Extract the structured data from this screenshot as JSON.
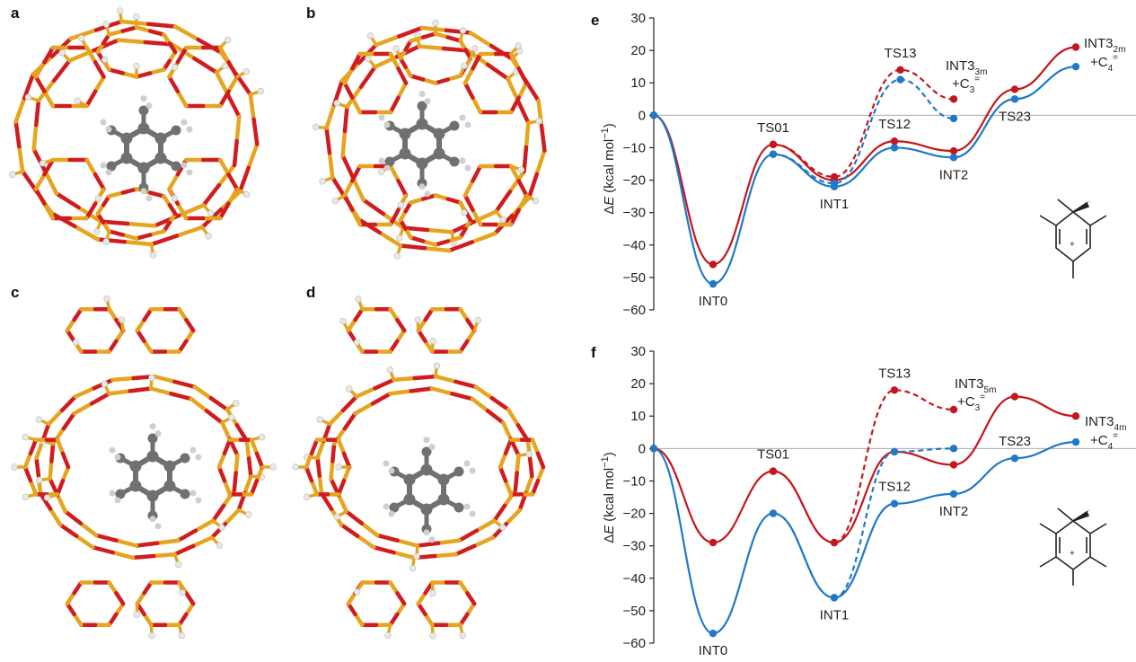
{
  "panels": {
    "a": {
      "letter": "a"
    },
    "b": {
      "letter": "b"
    },
    "c": {
      "letter": "c"
    },
    "d": {
      "letter": "d"
    }
  },
  "colors": {
    "red": "#c4161c",
    "blue": "#1f78c8",
    "gold": "#e5a521",
    "oxygen": "#d01c1f",
    "carbon": "#6e6e6e",
    "hydrogen": "#d9d9d9"
  },
  "chart_data": [
    {
      "panel": "e",
      "type": "line",
      "ylabel_delta": "Δ",
      "ylabel_E": "E",
      "ylabel_unit": "(kcal mol",
      "ylabel_sup": "−1",
      "ylabel_close": ")",
      "ylim": [
        -60,
        30
      ],
      "yticks": [
        30,
        20,
        10,
        0,
        -10,
        -20,
        -30,
        -40,
        -50,
        -60
      ],
      "x_positions": [
        0,
        1,
        2,
        3,
        4,
        5,
        6
      ],
      "series": [
        {
          "name": "red-solid",
          "color": "#c4161c",
          "dash": false,
          "points": [
            [
              0,
              0
            ],
            [
              1,
              -46
            ],
            [
              2,
              -9
            ],
            [
              3,
              -20
            ],
            [
              4,
              -8
            ],
            [
              5,
              -11
            ],
            [
              6,
              8
            ],
            [
              7,
              21
            ]
          ]
        },
        {
          "name": "blue-solid",
          "color": "#1f78c8",
          "dash": false,
          "points": [
            [
              0,
              0
            ],
            [
              1,
              -52
            ],
            [
              2,
              -12
            ],
            [
              3,
              -22
            ],
            [
              4,
              -10
            ],
            [
              5,
              -13
            ],
            [
              6,
              5
            ],
            [
              7,
              15
            ]
          ]
        },
        {
          "name": "red-dashed",
          "color": "#c4161c",
          "dash": true,
          "points": [
            [
              2,
              -9
            ],
            [
              3,
              -19
            ],
            [
              4.1,
              14
            ],
            [
              5,
              5
            ]
          ]
        },
        {
          "name": "blue-dashed",
          "color": "#1f78c8",
          "dash": true,
          "points": [
            [
              2,
              -12
            ],
            [
              3,
              -21
            ],
            [
              4.1,
              11
            ],
            [
              5,
              -1
            ]
          ]
        }
      ],
      "labels": [
        {
          "id": "INT0",
          "text": "INT0",
          "x": 1,
          "y": -52,
          "pos": "below"
        },
        {
          "id": "TS01",
          "text": "TS01",
          "x": 2,
          "y": -9,
          "pos": "above"
        },
        {
          "id": "INT1",
          "text": "INT1",
          "x": 3,
          "y": -22,
          "pos": "below"
        },
        {
          "id": "TS12",
          "text": "TS12",
          "x": 4,
          "y": -8,
          "pos": "above"
        },
        {
          "id": "TS13",
          "text": "TS13",
          "x": 4.1,
          "y": 14,
          "pos": "above"
        },
        {
          "id": "INT2",
          "text": "INT2",
          "x": 5,
          "y": -13,
          "pos": "below"
        },
        {
          "id": "TS23",
          "text": "TS23",
          "x": 6,
          "y": 5,
          "pos": "below"
        }
      ],
      "int3_side": {
        "base": "INT3",
        "sub": "3m",
        "plus": "+C",
        "psub": "3",
        "psup": "="
      },
      "int3_main": {
        "base": "INT3",
        "sub": "2m",
        "plus": "+C",
        "psub": "4",
        "psup": "="
      }
    },
    {
      "panel": "f",
      "type": "line",
      "ylabel_delta": "Δ",
      "ylabel_E": "E",
      "ylabel_unit": "(kcal mol",
      "ylabel_sup": "−1",
      "ylabel_close": ")",
      "ylim": [
        -60,
        30
      ],
      "yticks": [
        30,
        20,
        10,
        0,
        -10,
        -20,
        -30,
        -40,
        -50,
        -60
      ],
      "series": [
        {
          "name": "red-solid",
          "color": "#c4161c",
          "dash": false,
          "points": [
            [
              0,
              0
            ],
            [
              1,
              -29
            ],
            [
              2,
              -7
            ],
            [
              3,
              -29
            ],
            [
              4,
              -1
            ],
            [
              5,
              -5
            ],
            [
              6,
              16
            ],
            [
              7,
              10
            ]
          ]
        },
        {
          "name": "blue-solid",
          "color": "#1f78c8",
          "dash": false,
          "points": [
            [
              0,
              0
            ],
            [
              1,
              -57
            ],
            [
              2,
              -20
            ],
            [
              3,
              -46
            ],
            [
              4,
              -17
            ],
            [
              5,
              -14
            ],
            [
              6,
              -3
            ],
            [
              7,
              2
            ]
          ]
        },
        {
          "name": "red-dashed",
          "color": "#c4161c",
          "dash": true,
          "points": [
            [
              2,
              -7
            ],
            [
              3,
              -29
            ],
            [
              4,
              18
            ],
            [
              5,
              12
            ]
          ]
        },
        {
          "name": "blue-dashed",
          "color": "#1f78c8",
          "dash": true,
          "points": [
            [
              2,
              -20
            ],
            [
              3,
              -46
            ],
            [
              4,
              -1
            ],
            [
              5,
              0
            ]
          ]
        }
      ],
      "labels": [
        {
          "id": "INT0",
          "text": "INT0",
          "x": 1,
          "y": -57,
          "pos": "below"
        },
        {
          "id": "TS01",
          "text": "TS01",
          "x": 2,
          "y": -7,
          "pos": "above"
        },
        {
          "id": "INT1",
          "text": "INT1",
          "x": 3,
          "y": -46,
          "pos": "below"
        },
        {
          "id": "TS12",
          "text": "TS12",
          "x": 4,
          "y": -17,
          "pos": "above"
        },
        {
          "id": "TS13",
          "text": "TS13",
          "x": 4,
          "y": 18,
          "pos": "above"
        },
        {
          "id": "INT2",
          "text": "INT2",
          "x": 5,
          "y": -14,
          "pos": "below"
        },
        {
          "id": "TS23",
          "text": "TS23",
          "x": 6,
          "y": -3,
          "pos": "above"
        }
      ],
      "int3_side": {
        "base": "INT3",
        "sub": "5m",
        "plus": "+C",
        "psub": "3",
        "psup": "="
      },
      "int3_main": {
        "base": "INT3",
        "sub": "4m",
        "plus": "+C",
        "psub": "4",
        "psup": "="
      }
    }
  ],
  "chart_letters": {
    "e": "e",
    "f": "f"
  }
}
